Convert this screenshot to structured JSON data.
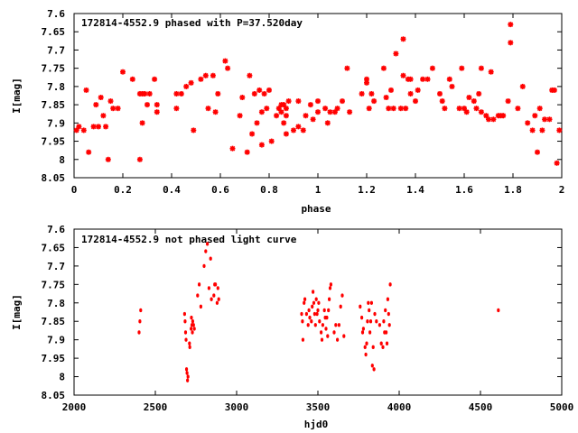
{
  "chart_data": [
    {
      "type": "scatter",
      "title": "172814-4552.9 phased with P=37.520day",
      "xlabel": "phase",
      "ylabel": "I[mag]",
      "xlim": [
        0,
        2
      ],
      "ylim": [
        8.05,
        7.6
      ],
      "y_inverted": true,
      "x_ticks": [
        "0",
        "0.2",
        "0.4",
        "0.6",
        "0.8",
        "1",
        "1.2",
        "1.4",
        "1.6",
        "1.8",
        "2"
      ],
      "y_ticks": [
        "7.6",
        "7.65",
        "7.7",
        "7.75",
        "7.8",
        "7.85",
        "7.9",
        "7.95",
        "8",
        "8.05"
      ],
      "marker_color": "#ff0000",
      "grid": false,
      "series": [
        {
          "points": [
            [
              0.01,
              7.92
            ],
            [
              0.02,
              7.91
            ],
            [
              0.04,
              7.92
            ],
            [
              0.05,
              7.81
            ],
            [
              0.06,
              7.98
            ],
            [
              0.08,
              7.91
            ],
            [
              0.09,
              7.85
            ],
            [
              0.1,
              7.91
            ],
            [
              0.11,
              7.83
            ],
            [
              0.12,
              7.88
            ],
            [
              0.13,
              7.91
            ],
            [
              0.14,
              8.0
            ],
            [
              0.15,
              7.84
            ],
            [
              0.16,
              7.86
            ],
            [
              0.18,
              7.86
            ],
            [
              0.2,
              7.76
            ],
            [
              0.24,
              7.78
            ],
            [
              0.27,
              7.82
            ],
            [
              0.27,
              8.0
            ],
            [
              0.28,
              7.9
            ],
            [
              0.28,
              7.82
            ],
            [
              0.29,
              7.82
            ],
            [
              0.3,
              7.85
            ],
            [
              0.31,
              7.82
            ],
            [
              0.33,
              7.78
            ],
            [
              0.34,
              7.87
            ],
            [
              0.34,
              7.85
            ],
            [
              0.42,
              7.86
            ],
            [
              0.42,
              7.82
            ],
            [
              0.44,
              7.82
            ],
            [
              0.46,
              7.8
            ],
            [
              0.48,
              7.79
            ],
            [
              0.49,
              7.92
            ],
            [
              0.52,
              7.78
            ],
            [
              0.54,
              7.77
            ],
            [
              0.55,
              7.86
            ],
            [
              0.57,
              7.77
            ],
            [
              0.58,
              7.87
            ],
            [
              0.59,
              7.82
            ],
            [
              0.62,
              7.73
            ],
            [
              0.63,
              7.75
            ],
            [
              0.65,
              7.97
            ],
            [
              0.68,
              7.88
            ],
            [
              0.69,
              7.83
            ],
            [
              0.71,
              7.98
            ],
            [
              0.72,
              7.77
            ],
            [
              0.73,
              7.93
            ],
            [
              0.74,
              7.82
            ],
            [
              0.75,
              7.9
            ],
            [
              0.76,
              7.81
            ],
            [
              0.77,
              7.96
            ],
            [
              0.77,
              7.87
            ],
            [
              0.78,
              7.82
            ],
            [
              0.79,
              7.86
            ],
            [
              0.8,
              7.81
            ],
            [
              0.81,
              7.95
            ],
            [
              0.83,
              7.88
            ],
            [
              0.84,
              7.86
            ],
            [
              0.85,
              7.85
            ],
            [
              0.85,
              7.87
            ],
            [
              0.86,
              7.9
            ],
            [
              0.86,
              7.85
            ],
            [
              0.87,
              7.93
            ],
            [
              0.87,
              7.86
            ],
            [
              0.87,
              7.88
            ],
            [
              0.88,
              7.84
            ],
            [
              0.9,
              7.92
            ],
            [
              0.92,
              7.84
            ],
            [
              0.92,
              7.91
            ],
            [
              0.94,
              7.92
            ],
            [
              0.95,
              7.88
            ],
            [
              0.97,
              7.85
            ],
            [
              0.98,
              7.89
            ],
            [
              1.0,
              7.87
            ],
            [
              1.0,
              7.84
            ],
            [
              1.03,
              7.86
            ],
            [
              1.04,
              7.9
            ],
            [
              1.05,
              7.87
            ],
            [
              1.07,
              7.87
            ],
            [
              1.08,
              7.86
            ],
            [
              1.1,
              7.84
            ],
            [
              1.12,
              7.75
            ],
            [
              1.13,
              7.87
            ],
            [
              1.18,
              7.82
            ],
            [
              1.2,
              7.78
            ],
            [
              1.2,
              7.79
            ],
            [
              1.21,
              7.86
            ],
            [
              1.22,
              7.82
            ],
            [
              1.23,
              7.84
            ],
            [
              1.27,
              7.75
            ],
            [
              1.28,
              7.83
            ],
            [
              1.29,
              7.86
            ],
            [
              1.3,
              7.81
            ],
            [
              1.31,
              7.86
            ],
            [
              1.32,
              7.71
            ],
            [
              1.34,
              7.86
            ],
            [
              1.35,
              7.67
            ],
            [
              1.35,
              7.77
            ],
            [
              1.36,
              7.86
            ],
            [
              1.37,
              7.78
            ],
            [
              1.38,
              7.78
            ],
            [
              1.38,
              7.82
            ],
            [
              1.4,
              7.84
            ],
            [
              1.41,
              7.81
            ],
            [
              1.43,
              7.78
            ],
            [
              1.45,
              7.78
            ],
            [
              1.47,
              7.75
            ],
            [
              1.5,
              7.82
            ],
            [
              1.51,
              7.84
            ],
            [
              1.52,
              7.86
            ],
            [
              1.54,
              7.78
            ],
            [
              1.55,
              7.8
            ],
            [
              1.58,
              7.86
            ],
            [
              1.59,
              7.75
            ],
            [
              1.6,
              7.86
            ],
            [
              1.61,
              7.87
            ],
            [
              1.62,
              7.83
            ],
            [
              1.64,
              7.84
            ],
            [
              1.65,
              7.86
            ],
            [
              1.66,
              7.82
            ],
            [
              1.67,
              7.75
            ],
            [
              1.67,
              7.87
            ],
            [
              1.69,
              7.88
            ],
            [
              1.7,
              7.89
            ],
            [
              1.71,
              7.76
            ],
            [
              1.72,
              7.89
            ],
            [
              1.74,
              7.88
            ],
            [
              1.75,
              7.88
            ],
            [
              1.76,
              7.88
            ],
            [
              1.78,
              7.84
            ],
            [
              1.79,
              7.63
            ],
            [
              1.79,
              7.68
            ],
            [
              1.82,
              7.86
            ],
            [
              1.84,
              7.8
            ],
            [
              1.86,
              7.9
            ],
            [
              1.88,
              7.92
            ],
            [
              1.89,
              7.88
            ],
            [
              1.9,
              7.98
            ],
            [
              1.91,
              7.86
            ],
            [
              1.92,
              7.92
            ],
            [
              1.93,
              7.89
            ],
            [
              1.95,
              7.89
            ],
            [
              1.96,
              7.81
            ],
            [
              1.97,
              7.81
            ],
            [
              1.98,
              8.01
            ],
            [
              1.99,
              7.92
            ]
          ]
        }
      ]
    },
    {
      "type": "scatter",
      "title": "172814-4552.9 not phased light curve",
      "xlabel": "hjd0",
      "ylabel": "I[mag]",
      "xlim": [
        2000,
        5000
      ],
      "ylim": [
        8.05,
        7.6
      ],
      "y_inverted": true,
      "x_ticks": [
        "2000",
        "2500",
        "3000",
        "3500",
        "4000",
        "4500",
        "5000"
      ],
      "y_ticks": [
        "7.6",
        "7.65",
        "7.7",
        "7.75",
        "7.8",
        "7.85",
        "7.9",
        "7.95",
        "8",
        "8.05"
      ],
      "marker_color": "#ff0000",
      "grid": false,
      "series": [
        {
          "points": [
            [
              2400,
              7.88
            ],
            [
              2405,
              7.85
            ],
            [
              2410,
              7.82
            ],
            [
              2680,
              7.83
            ],
            [
              2683,
              7.85
            ],
            [
              2686,
              7.88
            ],
            [
              2689,
              7.9
            ],
            [
              2692,
              7.98
            ],
            [
              2695,
              7.99
            ],
            [
              2698,
              8.01
            ],
            [
              2701,
              8.0
            ],
            [
              2710,
              7.91
            ],
            [
              2712,
              7.92
            ],
            [
              2720,
              7.87
            ],
            [
              2722,
              7.84
            ],
            [
              2725,
              7.86
            ],
            [
              2728,
              7.88
            ],
            [
              2730,
              7.85
            ],
            [
              2735,
              7.86
            ],
            [
              2740,
              7.87
            ],
            [
              2760,
              7.78
            ],
            [
              2770,
              7.75
            ],
            [
              2780,
              7.81
            ],
            [
              2800,
              7.7
            ],
            [
              2810,
              7.66
            ],
            [
              2820,
              7.64
            ],
            [
              2830,
              7.76
            ],
            [
              2840,
              7.68
            ],
            [
              2845,
              7.79
            ],
            [
              2860,
              7.78
            ],
            [
              2865,
              7.75
            ],
            [
              2870,
              7.75
            ],
            [
              2880,
              7.8
            ],
            [
              2885,
              7.76
            ],
            [
              2890,
              7.79
            ],
            [
              3400,
              7.83
            ],
            [
              3405,
              7.85
            ],
            [
              3408,
              7.9
            ],
            [
              3415,
              7.8
            ],
            [
              3420,
              7.79
            ],
            [
              3430,
              7.83
            ],
            [
              3440,
              7.86
            ],
            [
              3445,
              7.82
            ],
            [
              3450,
              7.84
            ],
            [
              3460,
              7.85
            ],
            [
              3465,
              7.81
            ],
            [
              3470,
              7.77
            ],
            [
              3475,
              7.8
            ],
            [
              3480,
              7.83
            ],
            [
              3485,
              7.86
            ],
            [
              3490,
              7.79
            ],
            [
              3495,
              7.83
            ],
            [
              3500,
              7.82
            ],
            [
              3505,
              7.8
            ],
            [
              3510,
              7.85
            ],
            [
              3520,
              7.88
            ],
            [
              3525,
              7.9
            ],
            [
              3530,
              7.86
            ],
            [
              3540,
              7.82
            ],
            [
              3545,
              7.84
            ],
            [
              3550,
              7.87
            ],
            [
              3555,
              7.84
            ],
            [
              3560,
              7.89
            ],
            [
              3565,
              7.82
            ],
            [
              3570,
              7.79
            ],
            [
              3575,
              7.76
            ],
            [
              3580,
              7.75
            ],
            [
              3600,
              7.88
            ],
            [
              3610,
              7.86
            ],
            [
              3620,
              7.9
            ],
            [
              3630,
              7.86
            ],
            [
              3640,
              7.81
            ],
            [
              3650,
              7.78
            ],
            [
              3660,
              7.89
            ],
            [
              3760,
              7.81
            ],
            [
              3770,
              7.84
            ],
            [
              3775,
              7.88
            ],
            [
              3780,
              7.87
            ],
            [
              3790,
              7.92
            ],
            [
              3795,
              7.94
            ],
            [
              3800,
              7.91
            ],
            [
              3805,
              7.85
            ],
            [
              3810,
              7.8
            ],
            [
              3815,
              7.82
            ],
            [
              3820,
              7.88
            ],
            [
              3825,
              7.85
            ],
            [
              3830,
              7.8
            ],
            [
              3835,
              7.97
            ],
            [
              3840,
              7.92
            ],
            [
              3845,
              7.98
            ],
            [
              3850,
              7.83
            ],
            [
              3860,
              7.85
            ],
            [
              3880,
              7.86
            ],
            [
              3890,
              7.91
            ],
            [
              3900,
              7.92
            ],
            [
              3905,
              7.85
            ],
            [
              3910,
              7.88
            ],
            [
              3915,
              7.82
            ],
            [
              3920,
              7.88
            ],
            [
              3925,
              7.91
            ],
            [
              3930,
              7.79
            ],
            [
              3935,
              7.83
            ],
            [
              3940,
              7.86
            ],
            [
              3945,
              7.75
            ],
            [
              4610,
              7.82
            ]
          ]
        }
      ]
    }
  ]
}
